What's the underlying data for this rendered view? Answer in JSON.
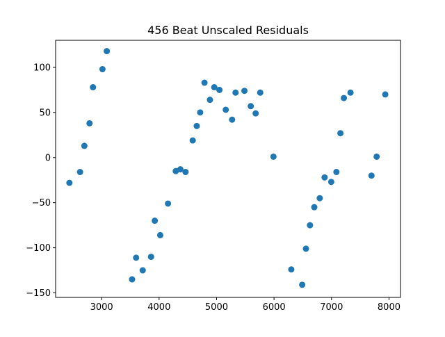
{
  "chart_data": {
    "type": "scatter",
    "title": "456 Beat Unscaled Residuals",
    "xlabel": "",
    "ylabel": "",
    "xlim": [
      2200,
      8200
    ],
    "ylim": [
      -155,
      130
    ],
    "x_ticks": [
      3000,
      4000,
      5000,
      6000,
      7000,
      8000
    ],
    "y_ticks": [
      -150,
      -100,
      -50,
      0,
      50,
      100
    ],
    "x_tick_labels": [
      "3000",
      "4000",
      "5000",
      "6000",
      "7000",
      "8000"
    ],
    "y_tick_labels": [
      "−150",
      "−100",
      "−50",
      "0",
      "50",
      "100"
    ],
    "grid": false,
    "legend": "none",
    "marker_color": "#1f77b4",
    "points": [
      {
        "x": 2440,
        "y": -28
      },
      {
        "x": 2625,
        "y": -16
      },
      {
        "x": 2700,
        "y": 13
      },
      {
        "x": 2790,
        "y": 38
      },
      {
        "x": 2850,
        "y": 78
      },
      {
        "x": 3015,
        "y": 98
      },
      {
        "x": 3090,
        "y": 118
      },
      {
        "x": 3530,
        "y": -135
      },
      {
        "x": 3600,
        "y": -111
      },
      {
        "x": 3715,
        "y": -125
      },
      {
        "x": 3860,
        "y": -110
      },
      {
        "x": 3925,
        "y": -70
      },
      {
        "x": 4020,
        "y": -86
      },
      {
        "x": 4155,
        "y": -51
      },
      {
        "x": 4290,
        "y": -15
      },
      {
        "x": 4370,
        "y": -13
      },
      {
        "x": 4460,
        "y": -16
      },
      {
        "x": 4585,
        "y": 19
      },
      {
        "x": 4655,
        "y": 35
      },
      {
        "x": 4715,
        "y": 50
      },
      {
        "x": 4790,
        "y": 83
      },
      {
        "x": 4885,
        "y": 64
      },
      {
        "x": 4960,
        "y": 78
      },
      {
        "x": 5050,
        "y": 75
      },
      {
        "x": 5160,
        "y": 53
      },
      {
        "x": 5270,
        "y": 42
      },
      {
        "x": 5330,
        "y": 72
      },
      {
        "x": 5485,
        "y": 74
      },
      {
        "x": 5595,
        "y": 57
      },
      {
        "x": 5680,
        "y": 49
      },
      {
        "x": 5760,
        "y": 72
      },
      {
        "x": 5990,
        "y": 1
      },
      {
        "x": 6300,
        "y": -124
      },
      {
        "x": 6490,
        "y": -141
      },
      {
        "x": 6555,
        "y": -101
      },
      {
        "x": 6625,
        "y": -75
      },
      {
        "x": 6700,
        "y": -55
      },
      {
        "x": 6795,
        "y": -45
      },
      {
        "x": 6880,
        "y": -22
      },
      {
        "x": 6995,
        "y": -27
      },
      {
        "x": 7085,
        "y": -16
      },
      {
        "x": 7155,
        "y": 27
      },
      {
        "x": 7215,
        "y": 66
      },
      {
        "x": 7330,
        "y": 72
      },
      {
        "x": 7695,
        "y": -20
      },
      {
        "x": 7785,
        "y": 1
      },
      {
        "x": 7935,
        "y": 70
      }
    ]
  }
}
